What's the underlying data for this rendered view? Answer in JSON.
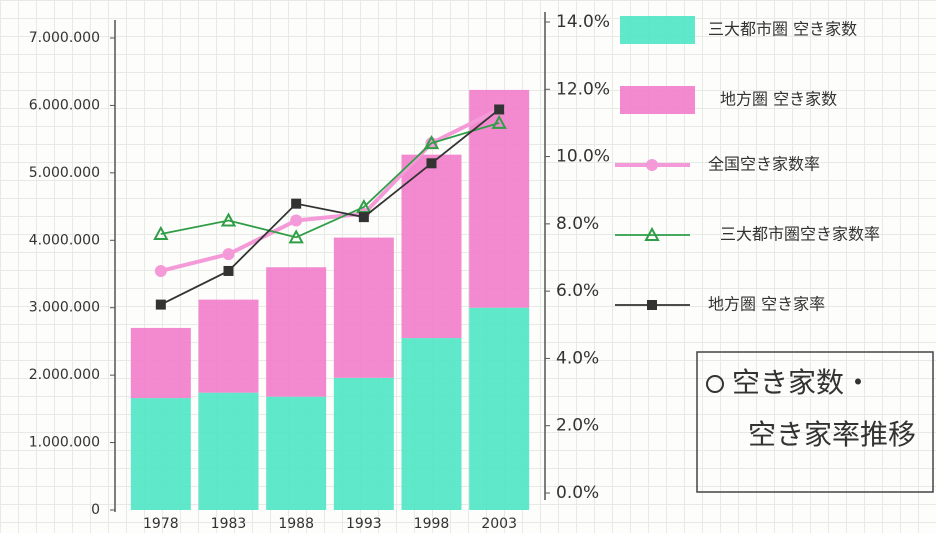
{
  "chart_data": {
    "type": "bar-line",
    "title": [
      "空き家数・",
      "空き家率推移"
    ],
    "categories": [
      "1978",
      "1983",
      "1988",
      "1993",
      "1998",
      "2003"
    ],
    "stacked": true,
    "series": [
      {
        "name": "三大都市圏 空き家数",
        "type": "bar",
        "color": "#4fe6c4",
        "values": [
          1660000,
          1740000,
          1680000,
          1960000,
          2550000,
          3000000
        ]
      },
      {
        "name": "地方圏 空き家数",
        "type": "bar",
        "color": "#f27cc9",
        "values": [
          1040000,
          1380000,
          1920000,
          2080000,
          2720000,
          3230000
        ]
      },
      {
        "name": "全国空き家数率",
        "type": "line",
        "axis": "y2",
        "marker": "circle",
        "color": "#f59ad8",
        "values": [
          6.6,
          7.1,
          8.1,
          8.3,
          10.4,
          11.4
        ]
      },
      {
        "name": "三大都市圏空き家数率",
        "type": "line",
        "axis": "y2",
        "marker": "triangle",
        "color": "#2f9e47",
        "values": [
          7.7,
          8.1,
          7.6,
          8.5,
          10.4,
          11.0
        ]
      },
      {
        "name": "地方圏 空き家率",
        "type": "line",
        "axis": "y2",
        "marker": "square",
        "color": "#333333",
        "values": [
          5.6,
          6.6,
          8.6,
          8.2,
          9.8,
          11.4
        ]
      }
    ],
    "ylim": [
      0,
      7000000
    ],
    "yticks": [
      0,
      {
        "value": 1000000,
        "label": "1.000.000"
      },
      {
        "value": 2000000,
        "label": "2.000.000"
      },
      {
        "value": 3000000,
        "label": "3.000.000"
      },
      {
        "value": 4000000,
        "label": "4.000.000"
      },
      {
        "value": 5000000,
        "label": "5.000.000"
      },
      {
        "value": 6000000,
        "label": "6.000.000"
      },
      {
        "value": 7000000,
        "label": "7.000.000"
      }
    ],
    "y2lim": [
      0,
      14
    ],
    "y2ticks": [
      {
        "value": 0,
        "label": "0.0%"
      },
      {
        "value": 2,
        "label": "2.0%"
      },
      {
        "value": 4,
        "label": "4.0%"
      },
      {
        "value": 6,
        "label": "6.0%"
      },
      {
        "value": 8,
        "label": "8.0%"
      },
      {
        "value": 10,
        "label": "10.0%"
      },
      {
        "value": 12,
        "label": "12.0%"
      },
      {
        "value": 14,
        "label": "14.0%"
      }
    ],
    "legend": "right"
  }
}
